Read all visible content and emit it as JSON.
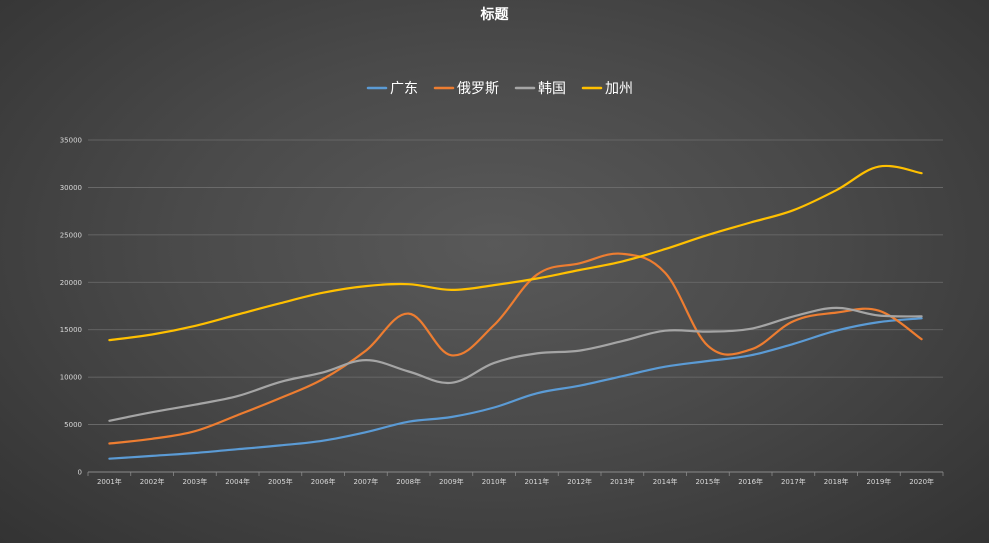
{
  "chart_data": {
    "type": "line",
    "title": "标题",
    "xlabel": "",
    "ylabel": "",
    "categories": [
      "2001年",
      "2002年",
      "2003年",
      "2004年",
      "2005年",
      "2006年",
      "2007年",
      "2008年",
      "2009年",
      "2010年",
      "2011年",
      "2012年",
      "2013年",
      "2014年",
      "2015年",
      "2016年",
      "2017年",
      "2018年",
      "2019年",
      "2020年"
    ],
    "yticks": [
      "0",
      "5000",
      "10000",
      "15000",
      "20000",
      "25000",
      "30000",
      "35000"
    ],
    "ylim": [
      0,
      35000
    ],
    "grid": true,
    "legend_position": "top",
    "series": [
      {
        "name": "广东",
        "color": "#5b9bd5",
        "values": [
          1400,
          1700,
          2000,
          2400,
          2800,
          3300,
          4200,
          5300,
          5800,
          6800,
          8300,
          9100,
          10100,
          11100,
          11700,
          12300,
          13500,
          14900,
          15800,
          16200
        ]
      },
      {
        "name": "俄罗斯",
        "color": "#ed7d31",
        "values": [
          3000,
          3500,
          4300,
          6000,
          7800,
          9800,
          12800,
          16700,
          12300,
          15500,
          20800,
          22000,
          23000,
          21000,
          13300,
          12900,
          15900,
          16800,
          17000,
          14000
        ]
      },
      {
        "name": "韩国",
        "color": "#a5a5a5",
        "values": [
          5400,
          6300,
          7100,
          8000,
          9500,
          10500,
          11800,
          10600,
          9400,
          11500,
          12500,
          12800,
          13800,
          14900,
          14800,
          15100,
          16400,
          17300,
          16500,
          16400
        ]
      },
      {
        "name": "加州",
        "color": "#ffc000",
        "values": [
          13900,
          14500,
          15400,
          16600,
          17800,
          18900,
          19600,
          19800,
          19200,
          19700,
          20400,
          21300,
          22200,
          23500,
          25000,
          26300,
          27600,
          29700,
          32200,
          31500
        ]
      }
    ]
  }
}
